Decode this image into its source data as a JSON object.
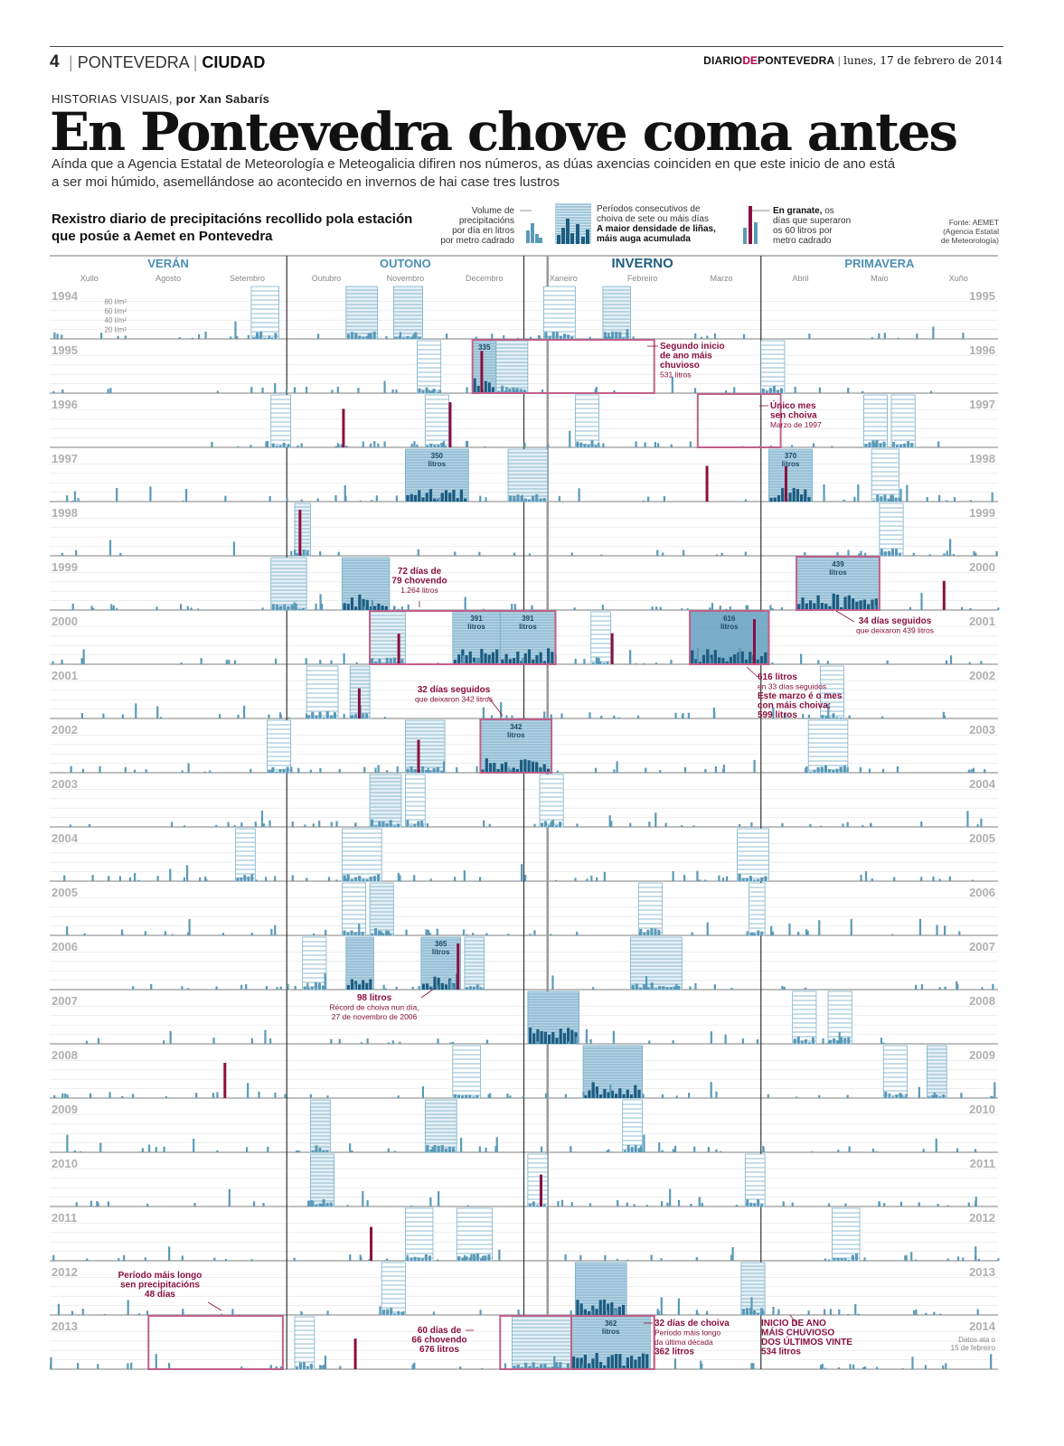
{
  "header": {
    "page_number": "4",
    "section_city": "PONTEVEDRA",
    "section_name": "CIUDAD",
    "brand_a": "DIARIO",
    "brand_b": "DE",
    "brand_c": "PONTEVEDRA",
    "date": "lunes, 17 de febrero de 2014"
  },
  "kicker": "HISTORIAS VISUAIS,",
  "byline": "por Xan Sabarís",
  "title": "En Pontevedra chove coma antes",
  "deck": "Aínda que a Agencia Estatal de Meteorología e Meteogalicia difiren nos números, as dúas axencias coinciden en que este inicio de ano está a ser moi húmido, asemellándose ao acontecido en invernos de hai case tres lustros",
  "subtitle": "Rexistro diario de precipitacións recollido pola estación que posúe a Aemet en Pontevedra",
  "legend": {
    "volume_1": "Volume de",
    "volume_2": "precipitacións",
    "volume_3": "por día en litros",
    "volume_4": "por metro cadrado",
    "periods_1": "Períodos consecutivos de",
    "periods_2": "choiva de sete ou máis días",
    "periods_3": "A maior densidade de liñas,",
    "periods_4": "máis auga acumulada",
    "granate_1": "En granate,",
    "granate_1b": " os",
    "granate_2": "días que superaron",
    "granate_3": "os 60 litros por",
    "granate_4": "metro cadrado"
  },
  "source_1": "Fonte: AEMET",
  "source_2": "(Agencia Estatal",
  "source_3": "de Meteorología)",
  "chart_data": {
    "type": "bar",
    "unit": "l/m²",
    "y_ticks": [
      "80 l/m²",
      "60 l/m²",
      "40 l/m²",
      "20 l/m²"
    ],
    "ylim": [
      0,
      100
    ],
    "seasons": [
      "VERÁN",
      "OUTONO",
      "INVERNO",
      "PRIMAVERA"
    ],
    "months": [
      "Xullo",
      "Agosto",
      "Setembro",
      "Outubro",
      "Novembro",
      "Decembro",
      "Xaneiro",
      "Febreiro",
      "Marzo",
      "Abril",
      "Maio",
      "Xuño"
    ],
    "rows": [
      {
        "left": "1994",
        "right": "1995"
      },
      {
        "left": "1995",
        "right": "1996"
      },
      {
        "left": "1996",
        "right": "1997"
      },
      {
        "left": "1997",
        "right": "1998"
      },
      {
        "left": "1998",
        "right": "1999"
      },
      {
        "left": "1999",
        "right": "2000"
      },
      {
        "left": "2000",
        "right": "2001"
      },
      {
        "left": "2001",
        "right": "2002"
      },
      {
        "left": "2002",
        "right": "2003"
      },
      {
        "left": "2003",
        "right": "2004"
      },
      {
        "left": "2004",
        "right": "2005"
      },
      {
        "left": "2005",
        "right": "2006"
      },
      {
        "left": "2006",
        "right": "2007"
      },
      {
        "left": "2007",
        "right": "2008"
      },
      {
        "left": "2008",
        "right": "2009"
      },
      {
        "left": "2009",
        "right": "2010"
      },
      {
        "left": "2010",
        "right": "2011"
      },
      {
        "left": "2011",
        "right": "2012"
      },
      {
        "left": "2012",
        "right": "2013"
      },
      {
        "left": "2013",
        "right": "2014"
      }
    ],
    "last_row_note_1": "Datos ata o",
    "last_row_note_2": "15 de febreiro",
    "periods": [
      {
        "row": 0,
        "start": 2.55,
        "end": 2.9,
        "shade": 0
      },
      {
        "row": 0,
        "start": 3.75,
        "end": 4.15,
        "shade": 1
      },
      {
        "row": 0,
        "start": 4.35,
        "end": 4.72,
        "shade": 1
      },
      {
        "row": 0,
        "start": 6.25,
        "end": 6.65,
        "shade": 0
      },
      {
        "row": 0,
        "start": 7.0,
        "end": 7.35,
        "shade": 1
      },
      {
        "row": 1,
        "start": 5.35,
        "end": 5.65,
        "shade": 2,
        "label": "335"
      },
      {
        "row": 1,
        "start": 5.65,
        "end": 6.05,
        "shade": 1
      },
      {
        "row": 1,
        "start": 4.65,
        "end": 4.95,
        "shade": 0
      },
      {
        "row": 1,
        "start": 9.0,
        "end": 9.3,
        "shade": 0
      },
      {
        "row": 2,
        "start": 2.8,
        "end": 3.05,
        "shade": 0
      },
      {
        "row": 2,
        "start": 4.75,
        "end": 5.05,
        "shade": 0
      },
      {
        "row": 2,
        "start": 6.65,
        "end": 6.95,
        "shade": 0
      },
      {
        "row": 2,
        "start": 10.3,
        "end": 10.6,
        "shade": 0
      },
      {
        "row": 2,
        "start": 10.65,
        "end": 10.95,
        "shade": 0
      },
      {
        "row": 3,
        "start": 4.5,
        "end": 5.3,
        "shade": 2,
        "label": "350\nlitros"
      },
      {
        "row": 3,
        "start": 5.8,
        "end": 6.3,
        "shade": 1
      },
      {
        "row": 3,
        "start": 9.1,
        "end": 9.65,
        "shade": 2,
        "label": "370\nlitros"
      },
      {
        "row": 3,
        "start": 10.4,
        "end": 10.75,
        "shade": 0
      },
      {
        "row": 4,
        "start": 3.1,
        "end": 3.3,
        "shade": 1
      },
      {
        "row": 4,
        "start": 10.5,
        "end": 10.8,
        "shade": 0
      },
      {
        "row": 5,
        "start": 2.8,
        "end": 3.25,
        "shade": 1
      },
      {
        "row": 5,
        "start": 3.7,
        "end": 4.3,
        "shade": 2
      },
      {
        "row": 5,
        "start": 9.45,
        "end": 10.5,
        "shade": 2,
        "label": "439\nlitros"
      },
      {
        "row": 6,
        "start": 4.05,
        "end": 4.5,
        "shade": 1
      },
      {
        "row": 6,
        "start": 5.1,
        "end": 5.7,
        "shade": 2,
        "label": "391\nlitros"
      },
      {
        "row": 6,
        "start": 5.7,
        "end": 6.4,
        "shade": 2,
        "label": "391\nlitros"
      },
      {
        "row": 6,
        "start": 8.1,
        "end": 9.1,
        "shade": 3,
        "label": "616\nlitros"
      },
      {
        "row": 6,
        "start": 6.85,
        "end": 7.1,
        "shade": 0
      },
      {
        "row": 7,
        "start": 3.25,
        "end": 3.65,
        "shade": 0
      },
      {
        "row": 7,
        "start": 3.8,
        "end": 4.05,
        "shade": 1
      },
      {
        "row": 7,
        "start": 9.75,
        "end": 10.05,
        "shade": 0
      },
      {
        "row": 8,
        "start": 2.75,
        "end": 3.05,
        "shade": 0
      },
      {
        "row": 8,
        "start": 4.5,
        "end": 5.0,
        "shade": 1
      },
      {
        "row": 8,
        "start": 5.45,
        "end": 6.35,
        "shade": 2,
        "label": "342\nlitros"
      },
      {
        "row": 8,
        "start": 9.6,
        "end": 10.1,
        "shade": 0
      },
      {
        "row": 9,
        "start": 4.05,
        "end": 4.45,
        "shade": 1
      },
      {
        "row": 9,
        "start": 6.2,
        "end": 6.5,
        "shade": 0
      },
      {
        "row": 9,
        "start": 4.5,
        "end": 4.75,
        "shade": 0
      },
      {
        "row": 10,
        "start": 2.35,
        "end": 2.6,
        "shade": 0
      },
      {
        "row": 10,
        "start": 3.7,
        "end": 4.2,
        "shade": 0
      },
      {
        "row": 10,
        "start": 8.7,
        "end": 9.1,
        "shade": 0
      },
      {
        "row": 11,
        "start": 3.7,
        "end": 4.0,
        "shade": 0
      },
      {
        "row": 11,
        "start": 4.05,
        "end": 4.35,
        "shade": 1
      },
      {
        "row": 11,
        "start": 7.45,
        "end": 7.75,
        "shade": 0
      },
      {
        "row": 11,
        "start": 8.85,
        "end": 9.05,
        "shade": 0
      },
      {
        "row": 12,
        "start": 3.2,
        "end": 3.5,
        "shade": 0
      },
      {
        "row": 12,
        "start": 3.75,
        "end": 4.1,
        "shade": 2
      },
      {
        "row": 12,
        "start": 4.7,
        "end": 5.2,
        "shade": 2,
        "label": "365\nlitros"
      },
      {
        "row": 12,
        "start": 5.25,
        "end": 5.5,
        "shade": 1
      },
      {
        "row": 12,
        "start": 7.35,
        "end": 8.0,
        "shade": 1
      },
      {
        "row": 13,
        "start": 6.05,
        "end": 6.7,
        "shade": 2
      },
      {
        "row": 13,
        "start": 9.4,
        "end": 9.7,
        "shade": 0
      },
      {
        "row": 13,
        "start": 9.85,
        "end": 10.15,
        "shade": 0
      },
      {
        "row": 14,
        "start": 5.1,
        "end": 5.45,
        "shade": 0
      },
      {
        "row": 14,
        "start": 6.75,
        "end": 7.5,
        "shade": 2
      },
      {
        "row": 14,
        "start": 10.55,
        "end": 10.85,
        "shade": 0
      },
      {
        "row": 14,
        "start": 11.1,
        "end": 11.35,
        "shade": 1
      },
      {
        "row": 15,
        "start": 3.3,
        "end": 3.55,
        "shade": 1
      },
      {
        "row": 15,
        "start": 4.75,
        "end": 5.15,
        "shade": 1
      },
      {
        "row": 15,
        "start": 7.25,
        "end": 7.5,
        "shade": 0
      },
      {
        "row": 16,
        "start": 3.3,
        "end": 3.6,
        "shade": 1
      },
      {
        "row": 16,
        "start": 6.05,
        "end": 6.3,
        "shade": 0
      },
      {
        "row": 16,
        "start": 8.8,
        "end": 9.05,
        "shade": 0
      },
      {
        "row": 17,
        "start": 4.5,
        "end": 4.85,
        "shade": 0
      },
      {
        "row": 17,
        "start": 5.15,
        "end": 5.6,
        "shade": 0
      },
      {
        "row": 17,
        "start": 9.9,
        "end": 10.25,
        "shade": 0
      },
      {
        "row": 18,
        "start": 4.2,
        "end": 4.5,
        "shade": 0
      },
      {
        "row": 18,
        "start": 6.65,
        "end": 7.3,
        "shade": 2
      },
      {
        "row": 18,
        "start": 8.75,
        "end": 9.05,
        "shade": 1
      },
      {
        "row": 19,
        "start": 3.1,
        "end": 3.35,
        "shade": 0
      },
      {
        "row": 19,
        "start": 5.85,
        "end": 6.6,
        "shade": 1
      },
      {
        "row": 19,
        "start": 6.6,
        "end": 7.6,
        "shade": 2,
        "label": "362\nlitros"
      }
    ],
    "highlights": [
      {
        "row": 1,
        "start": 5.35,
        "end": 7.65
      },
      {
        "row": 2,
        "start": 8.2,
        "end": 9.25
      },
      {
        "row": 5,
        "start": 9.45,
        "end": 10.5
      },
      {
        "row": 6,
        "start": 4.05,
        "end": 6.4
      },
      {
        "row": 6,
        "start": 8.1,
        "end": 9.1
      },
      {
        "row": 8,
        "start": 5.45,
        "end": 6.35
      },
      {
        "row": 19,
        "start": 1.25,
        "end": 2.95
      },
      {
        "row": 19,
        "start": 5.7,
        "end": 7.65
      },
      {
        "row": 19,
        "start": 6.6,
        "end": 7.65
      }
    ],
    "over60_days": [
      {
        "row": 1,
        "m": 5.45,
        "v": 90
      },
      {
        "row": 2,
        "m": 3.7,
        "v": 82
      },
      {
        "row": 2,
        "m": 5.05,
        "v": 96
      },
      {
        "row": 3,
        "m": 8.3,
        "v": 76
      },
      {
        "row": 3,
        "m": 9.3,
        "v": 75
      },
      {
        "row": 4,
        "m": 3.15,
        "v": 98
      },
      {
        "row": 5,
        "m": 11.3,
        "v": 62
      },
      {
        "row": 6,
        "m": 4.4,
        "v": 65
      },
      {
        "row": 6,
        "m": 7.1,
        "v": 66
      },
      {
        "row": 6,
        "m": 8.9,
        "v": 96
      },
      {
        "row": 7,
        "m": 3.9,
        "v": 64
      },
      {
        "row": 8,
        "m": 4.65,
        "v": 70
      },
      {
        "row": 12,
        "m": 5.15,
        "v": 98
      },
      {
        "row": 14,
        "m": 2.2,
        "v": 75
      },
      {
        "row": 16,
        "m": 6.2,
        "v": 68
      },
      {
        "row": 17,
        "m": 4.05,
        "v": 72
      },
      {
        "row": 19,
        "m": 3.85,
        "v": 65
      }
    ],
    "annotations": [
      {
        "id": "a1",
        "lines": [
          "Segundo inicio",
          "de ano máis",
          "chuvioso",
          "531 litros"
        ]
      },
      {
        "id": "a2",
        "lines": [
          "Único mes",
          "sen choiva",
          "Marzo de 1997"
        ]
      },
      {
        "id": "a3",
        "lines": [
          "72 días de",
          "79 chovendo",
          "1.264 litros"
        ]
      },
      {
        "id": "a4",
        "lines": [
          "34 días seguidos",
          "que deixaron 439 litros"
        ]
      },
      {
        "id": "a5",
        "lines": [
          "616 litros",
          "en 33 días seguidos",
          "Este marzo é o mes",
          "con máis choiva:",
          "599 litros"
        ]
      },
      {
        "id": "a6",
        "lines": [
          "32 días seguidos",
          "que deixaron 342 litros"
        ]
      },
      {
        "id": "a7",
        "lines": [
          "98 litros",
          "Récord de choiva nun día,",
          "27 de novembro de 2006"
        ]
      },
      {
        "id": "a8",
        "lines": [
          "Período máis longo",
          "sen precipitacións",
          "48 días"
        ]
      },
      {
        "id": "a9",
        "lines": [
          "60 días de",
          "66 chovendo",
          "676 litros"
        ]
      },
      {
        "id": "a10",
        "lines": [
          "32 días de choiva",
          "Período máis longo",
          "da última década",
          "362 litros"
        ]
      },
      {
        "id": "a11",
        "lines": [
          "INICIO DE ANO",
          "MÁIS CHUVIOSO",
          "DOS ÚLTIMOS VINTE",
          "534 litros"
        ]
      }
    ],
    "colors": {
      "bar": "#5a9ab8",
      "bar_dark": "#1d5c80",
      "over60": "#8a1040",
      "frame": "#c0608a",
      "period_line": "#6aa6c4",
      "grid": "#c8c8c8",
      "text_red": "#8a1040",
      "season": "#4a8fb3",
      "year_label": "#b0b0b0"
    }
  }
}
